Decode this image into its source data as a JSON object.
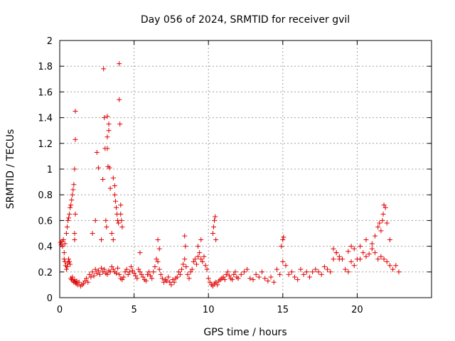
{
  "chart_data": {
    "type": "scatter",
    "title": "Day 056 of 2024, SRMTID for receiver gvil",
    "xlabel": "GPS time / hours",
    "ylabel": "SRMTID / TECUs",
    "xlim": [
      0,
      25
    ],
    "ylim": [
      0,
      2
    ],
    "xticks": [
      0,
      5,
      10,
      15,
      20
    ],
    "xtick_labels": [
      "0",
      "5",
      "10",
      "15",
      "20"
    ],
    "yticks": [
      0,
      0.2,
      0.4,
      0.6,
      0.8,
      1,
      1.2,
      1.4,
      1.6,
      1.8,
      2
    ],
    "ytick_labels": [
      "0",
      "0.2",
      "0.4",
      "0.6",
      "0.8",
      "1",
      "1.2",
      "1.4",
      "1.6",
      "1.8",
      "2"
    ],
    "grid": true,
    "marker": "+",
    "color": "#e00000",
    "series": [
      {
        "name": "SRMTID",
        "x": [
          0.05,
          0.1,
          0.15,
          0.2,
          0.25,
          0.3,
          0.35,
          0.4,
          0.45,
          0.5,
          0.55,
          0.6,
          0.65,
          0.7,
          0.75,
          0.8,
          0.85,
          0.9,
          0.95,
          1.0,
          1.05,
          1.1,
          1.15,
          1.2,
          1.3,
          1.4,
          1.5,
          1.6,
          1.7,
          1.8,
          1.9,
          2.0,
          2.1,
          2.2,
          2.3,
          2.4,
          2.5,
          2.6,
          2.7,
          2.8,
          2.9,
          3.0,
          3.1,
          3.2,
          3.3,
          3.4,
          3.5,
          3.6,
          3.7,
          3.8,
          3.9,
          4.0,
          4.1,
          4.2,
          4.3,
          4.4,
          4.5,
          4.6,
          4.7,
          4.8,
          4.9,
          5.0,
          5.1,
          5.2,
          5.3,
          5.4,
          5.5,
          5.6,
          5.7,
          5.8,
          5.9,
          6.0,
          6.1,
          6.2,
          6.3,
          6.4,
          6.5,
          6.6,
          6.7,
          6.8,
          6.9,
          7.0,
          7.1,
          7.2,
          7.3,
          7.4,
          7.5,
          7.6,
          7.7,
          7.8,
          7.9,
          8.0,
          8.1,
          8.2,
          8.3,
          8.4,
          8.5,
          8.6,
          8.7,
          8.8,
          8.9,
          9.0,
          9.1,
          9.2,
          9.3,
          9.4,
          9.5,
          9.6,
          9.7,
          9.8,
          9.9,
          10.0,
          10.1,
          10.2,
          10.3,
          10.4,
          10.5,
          10.6,
          10.7,
          10.8,
          10.9,
          11.0,
          11.1,
          11.2,
          11.3,
          11.4,
          11.5,
          11.6,
          11.7,
          11.8,
          11.9,
          12.0,
          12.2,
          12.4,
          12.6,
          12.8,
          13.0,
          13.2,
          13.4,
          13.6,
          13.8,
          14.0,
          14.2,
          14.4,
          14.6,
          14.8,
          15.0,
          15.2,
          15.4,
          15.6,
          15.8,
          16.0,
          16.2,
          16.4,
          16.6,
          16.8,
          17.0,
          17.2,
          17.4,
          17.6,
          17.8,
          18.0,
          18.2,
          18.4,
          18.6,
          18.8,
          19.0,
          19.2,
          19.4,
          19.6,
          19.8,
          20.0,
          20.2,
          20.4,
          20.6,
          20.8,
          21.0,
          21.2,
          21.4,
          21.6,
          21.8,
          22.0,
          22.2,
          22.4,
          22.6,
          22.8,
          0.3,
          0.35,
          0.45,
          0.5,
          0.55,
          0.6,
          0.65,
          0.7,
          0.75,
          0.8,
          0.85,
          0.9,
          0.95,
          1.0,
          1.05,
          1.05,
          1.05,
          1.0,
          1.0,
          2.2,
          2.4,
          2.5,
          2.6,
          2.8,
          2.9,
          2.95,
          3.0,
          3.05,
          3.1,
          3.15,
          3.2,
          3.2,
          3.2,
          3.25,
          3.3,
          3.3,
          3.35,
          3.4,
          3.5,
          3.6,
          3.6,
          3.7,
          3.7,
          3.75,
          3.8,
          3.85,
          3.9,
          3.95,
          4.0,
          4.0,
          4.05,
          4.1,
          4.1,
          4.15,
          4.2,
          10.3,
          10.35,
          10.4,
          10.45,
          10.5,
          9.3,
          9.5,
          8.4,
          8.45,
          6.6,
          6.7,
          5.4,
          15.0,
          15.05,
          14.9,
          18.4,
          18.6,
          18.8,
          19.4,
          19.6,
          19.8,
          20.2,
          20.6,
          21.0,
          21.2,
          21.4,
          21.5,
          21.6,
          21.7,
          21.75,
          21.8,
          21.9,
          22.0,
          22.2
        ],
        "y": [
          0.43,
          0.41,
          0.44,
          0.4,
          0.45,
          0.3,
          0.28,
          0.25,
          0.22,
          0.24,
          0.27,
          0.3,
          0.28,
          0.26,
          0.15,
          0.14,
          0.16,
          0.13,
          0.12,
          0.14,
          0.12,
          0.11,
          0.13,
          0.1,
          0.12,
          0.09,
          0.1,
          0.11,
          0.13,
          0.15,
          0.12,
          0.18,
          0.16,
          0.2,
          0.17,
          0.22,
          0.19,
          0.21,
          0.18,
          0.23,
          0.2,
          0.22,
          0.19,
          0.18,
          0.21,
          0.2,
          0.24,
          0.22,
          0.2,
          0.19,
          0.23,
          0.18,
          0.15,
          0.14,
          0.16,
          0.2,
          0.22,
          0.18,
          0.2,
          0.24,
          0.21,
          0.19,
          0.17,
          0.15,
          0.22,
          0.2,
          0.18,
          0.16,
          0.14,
          0.13,
          0.18,
          0.2,
          0.17,
          0.15,
          0.2,
          0.24,
          0.3,
          0.28,
          0.22,
          0.18,
          0.15,
          0.12,
          0.14,
          0.13,
          0.16,
          0.12,
          0.1,
          0.14,
          0.12,
          0.15,
          0.16,
          0.2,
          0.18,
          0.22,
          0.26,
          0.3,
          0.24,
          0.18,
          0.15,
          0.2,
          0.22,
          0.28,
          0.3,
          0.26,
          0.32,
          0.35,
          0.3,
          0.28,
          0.32,
          0.25,
          0.22,
          0.15,
          0.12,
          0.1,
          0.09,
          0.11,
          0.12,
          0.1,
          0.13,
          0.14,
          0.15,
          0.16,
          0.14,
          0.18,
          0.2,
          0.17,
          0.15,
          0.14,
          0.18,
          0.2,
          0.16,
          0.15,
          0.18,
          0.2,
          0.22,
          0.15,
          0.14,
          0.18,
          0.16,
          0.2,
          0.15,
          0.13,
          0.16,
          0.12,
          0.22,
          0.18,
          0.28,
          0.25,
          0.18,
          0.2,
          0.16,
          0.14,
          0.22,
          0.18,
          0.2,
          0.16,
          0.2,
          0.22,
          0.2,
          0.18,
          0.24,
          0.22,
          0.2,
          0.3,
          0.35,
          0.32,
          0.3,
          0.22,
          0.2,
          0.28,
          0.25,
          0.3,
          0.3,
          0.35,
          0.32,
          0.34,
          0.38,
          0.35,
          0.3,
          0.32,
          0.3,
          0.28,
          0.25,
          0.22,
          0.25,
          0.2,
          0.35,
          0.42,
          0.5,
          0.55,
          0.6,
          0.62,
          0.65,
          0.7,
          0.72,
          0.76,
          0.8,
          0.84,
          0.88,
          1.0,
          1.23,
          1.45,
          0.65,
          0.5,
          0.45,
          0.5,
          0.6,
          1.13,
          1.01,
          0.45,
          0.92,
          1.78,
          1.4,
          1.16,
          0.6,
          0.55,
          1.16,
          1.25,
          1.41,
          1.02,
          1.3,
          1.35,
          1.01,
          0.85,
          0.5,
          0.45,
          0.93,
          0.87,
          0.8,
          0.75,
          0.7,
          0.65,
          0.6,
          0.58,
          1.82,
          1.54,
          1.35,
          0.72,
          0.65,
          0.6,
          0.55,
          0.5,
          0.55,
          0.6,
          0.63,
          0.45,
          0.4,
          0.45,
          0.48,
          0.4,
          0.45,
          0.38,
          0.35,
          0.45,
          0.47,
          0.4,
          0.38,
          0.35,
          0.3,
          0.36,
          0.4,
          0.38,
          0.4,
          0.45,
          0.42,
          0.48,
          0.55,
          0.58,
          0.52,
          0.6,
          0.65,
          0.72,
          0.7,
          0.58,
          0.45
        ]
      }
    ]
  }
}
